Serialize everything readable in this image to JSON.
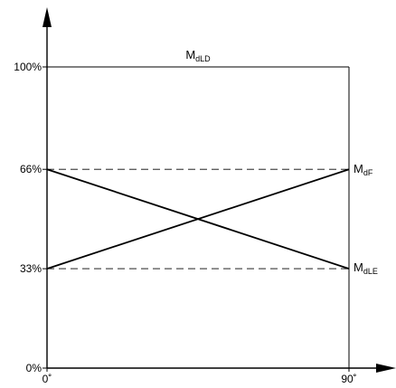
{
  "chart_data": {
    "type": "line",
    "title": {
      "main": "M",
      "sub": "dLD"
    },
    "x": [
      0,
      90
    ],
    "x_ticks": [
      {
        "value": 0,
        "label": "0˚"
      },
      {
        "value": 90,
        "label": "90˚"
      }
    ],
    "y_ticks": [
      {
        "value": 0,
        "label": "0%"
      },
      {
        "value": 33,
        "label": "33%"
      },
      {
        "value": 66,
        "label": "66%"
      },
      {
        "value": 100,
        "label": "100%"
      }
    ],
    "xlim": [
      0,
      90
    ],
    "ylim": [
      0,
      100
    ],
    "reference_lines": [
      33,
      66
    ],
    "reference_line_style": "dashed",
    "frame": "boxed at 100% and 90˚",
    "series": [
      {
        "name": "MdF",
        "label_main": "M",
        "label_sub": "dF",
        "values": [
          33,
          66
        ]
      },
      {
        "name": "MdLE",
        "label_main": "M",
        "label_sub": "dLE",
        "values": [
          66,
          33
        ]
      }
    ],
    "grid": false,
    "colors": {
      "line": "#000000",
      "background": "#ffffff"
    }
  }
}
